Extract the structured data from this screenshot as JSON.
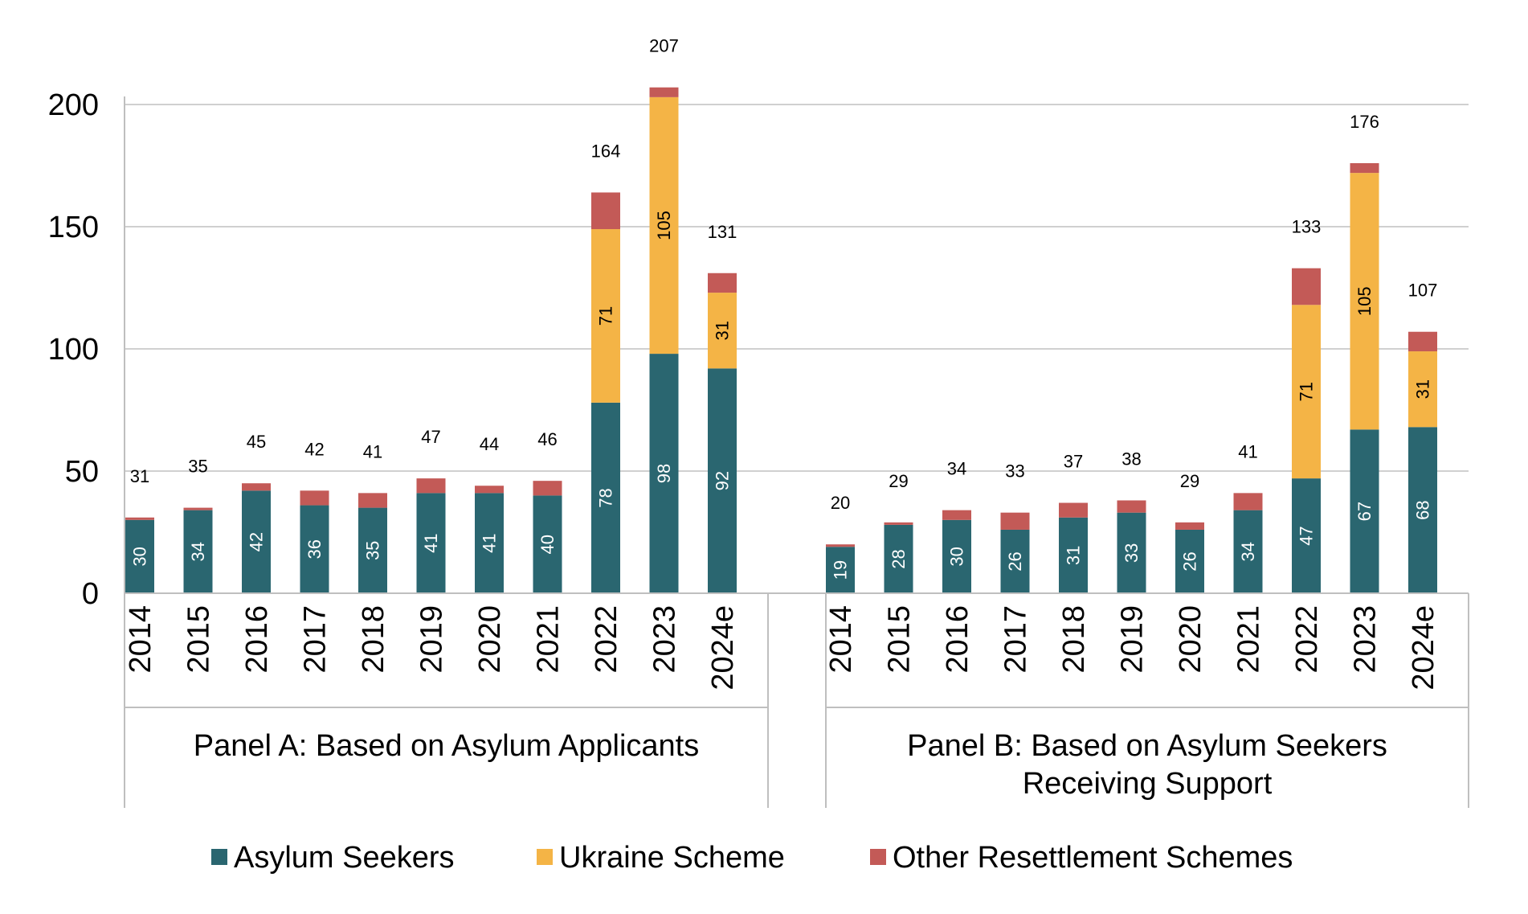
{
  "chart_data": {
    "type": "bar",
    "stacked": true,
    "ylim": [
      0,
      200
    ],
    "yticks": [
      0,
      50,
      100,
      150,
      200
    ],
    "grid": true,
    "legend_position": "bottom",
    "colors": {
      "asylum": "#2a6670",
      "ukraine": "#f4b446",
      "other": "#c35a57",
      "grid": "#d0d0d0",
      "axis": "#bfbfbf",
      "text": "#000000",
      "inner_label": "#ffffff"
    },
    "series_names": [
      "Asylum Seekers",
      "Ukraine Scheme",
      "Other Resettlement Schemes"
    ],
    "panels": [
      {
        "name": "Panel A: Based on Asylum Applicants",
        "name_lines": [
          "Panel A: Based on Asylum Applicants"
        ],
        "categories": [
          "2014",
          "2015",
          "2016",
          "2017",
          "2018",
          "2019",
          "2020",
          "2021",
          "2022",
          "2023",
          "2024e"
        ],
        "asylum": [
          30,
          34,
          42,
          36,
          35,
          41,
          41,
          40,
          78,
          98,
          92
        ],
        "ukraine": [
          0,
          0,
          0,
          0,
          0,
          0,
          0,
          0,
          71,
          105,
          31
        ],
        "other": [
          1,
          1,
          3,
          6,
          6,
          6,
          3,
          6,
          15,
          4,
          8
        ],
        "totals": [
          31,
          35,
          45,
          42,
          41,
          47,
          44,
          46,
          164,
          207,
          131
        ]
      },
      {
        "name": "Panel B: Based on Asylum Seekers Receiving Support",
        "name_lines": [
          "Panel B: Based on Asylum Seekers",
          "Receiving Support"
        ],
        "categories": [
          "2014",
          "2015",
          "2016",
          "2017",
          "2018",
          "2019",
          "2020",
          "2021",
          "2022",
          "2023",
          "2024e"
        ],
        "asylum": [
          19,
          28,
          30,
          26,
          31,
          33,
          26,
          34,
          47,
          67,
          68
        ],
        "ukraine": [
          0,
          0,
          0,
          0,
          0,
          0,
          0,
          0,
          71,
          105,
          31
        ],
        "other": [
          1,
          1,
          4,
          7,
          6,
          5,
          3,
          7,
          15,
          4,
          8
        ],
        "totals": [
          20,
          29,
          34,
          33,
          37,
          38,
          29,
          41,
          133,
          176,
          107
        ]
      }
    ]
  }
}
